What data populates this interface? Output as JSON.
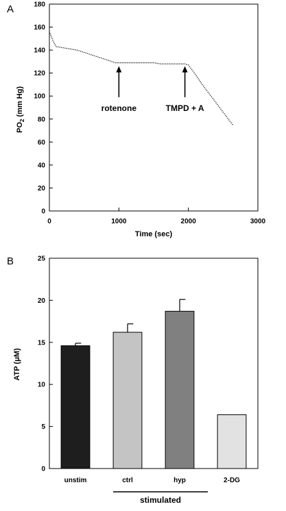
{
  "chart_data": [
    {
      "type": "scatter",
      "panel_label": "A",
      "xlabel": "Time (sec)",
      "ylabel_main": "PO",
      "ylabel_sub": "2",
      "ylabel_unit": " (mm Hg)",
      "xlim": [
        0,
        3000
      ],
      "ylim": [
        0,
        180
      ],
      "xticks": [
        0,
        1000,
        2000,
        3000
      ],
      "yticks": [
        0,
        20,
        40,
        60,
        80,
        100,
        120,
        140,
        160,
        180
      ],
      "series": [
        {
          "x": [
            0,
            60,
            100,
            200,
            300,
            400,
            500,
            600,
            700,
            800,
            900,
            950,
            1000,
            1100,
            1200,
            1300,
            1400,
            1500,
            1600,
            1700,
            1800,
            1900,
            1950,
            2000,
            2100,
            2200,
            2300,
            2400,
            2500,
            2600,
            2650
          ],
          "y": [
            156,
            147,
            143,
            142,
            141,
            140,
            138,
            136,
            134,
            132,
            130,
            129,
            129,
            129,
            129,
            129,
            129,
            129,
            128,
            128,
            128,
            128,
            128,
            127,
            119,
            110,
            102,
            94,
            86,
            78,
            74
          ]
        }
      ],
      "annotations": [
        {
          "text": "rotenone",
          "x": 1000,
          "arrow_from_y": 99,
          "arrow_to_y": 126
        },
        {
          "text": "TMPD + A",
          "x": 1950,
          "arrow_from_y": 99,
          "arrow_to_y": 126
        }
      ]
    },
    {
      "type": "bar",
      "panel_label": "B",
      "ylabel_main": "ATP (",
      "ylabel_mu": "μ",
      "ylabel_unit": "M)",
      "ylim": [
        0,
        25
      ],
      "yticks": [
        0,
        5,
        10,
        15,
        20,
        25
      ],
      "categories": [
        "unstim",
        "ctrl",
        "hyp",
        "2-DG"
      ],
      "values": [
        14.6,
        16.2,
        18.7,
        6.4
      ],
      "errors": [
        0.3,
        1.0,
        1.4,
        0
      ],
      "colors": [
        "#1e1e1e",
        "#c4c4c4",
        "#808080",
        "#e2e2e2"
      ],
      "group_label": "stimulated"
    }
  ]
}
